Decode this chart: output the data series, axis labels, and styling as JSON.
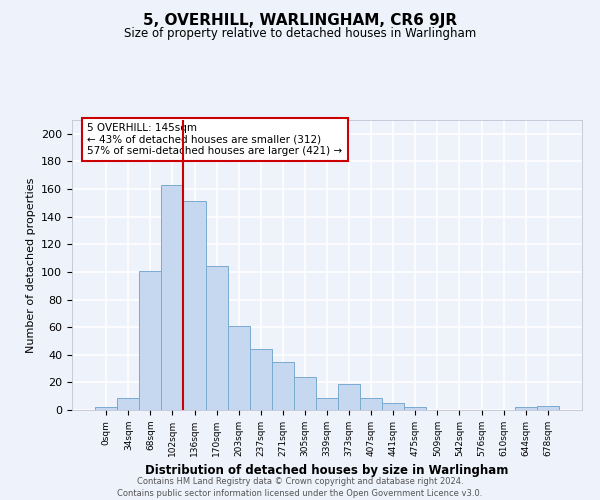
{
  "title": "5, OVERHILL, WARLINGHAM, CR6 9JR",
  "subtitle": "Size of property relative to detached houses in Warlingham",
  "xlabel": "Distribution of detached houses by size in Warlingham",
  "ylabel": "Number of detached properties",
  "bar_labels": [
    "0sqm",
    "34sqm",
    "68sqm",
    "102sqm",
    "136sqm",
    "170sqm",
    "203sqm",
    "237sqm",
    "271sqm",
    "305sqm",
    "339sqm",
    "373sqm",
    "407sqm",
    "441sqm",
    "475sqm",
    "509sqm",
    "542sqm",
    "576sqm",
    "610sqm",
    "644sqm",
    "678sqm"
  ],
  "bar_values": [
    2,
    9,
    101,
    163,
    151,
    104,
    61,
    44,
    35,
    24,
    9,
    19,
    9,
    5,
    2,
    0,
    0,
    0,
    0,
    2,
    3
  ],
  "bar_color": "#c5d8f0",
  "bar_edge_color": "#7aaad0",
  "background_color": "#eef2fb",
  "grid_color": "#ffffff",
  "vline_color": "#cc0000",
  "vline_x_index": 4,
  "annotation_text": "5 OVERHILL: 145sqm\n← 43% of detached houses are smaller (312)\n57% of semi-detached houses are larger (421) →",
  "annotation_box_facecolor": "white",
  "annotation_box_edgecolor": "#cc0000",
  "ylim": [
    0,
    210
  ],
  "yticks": [
    0,
    20,
    40,
    60,
    80,
    100,
    120,
    140,
    160,
    180,
    200
  ],
  "footer1": "Contains HM Land Registry data © Crown copyright and database right 2024.",
  "footer2": "Contains public sector information licensed under the Open Government Licence v3.0."
}
